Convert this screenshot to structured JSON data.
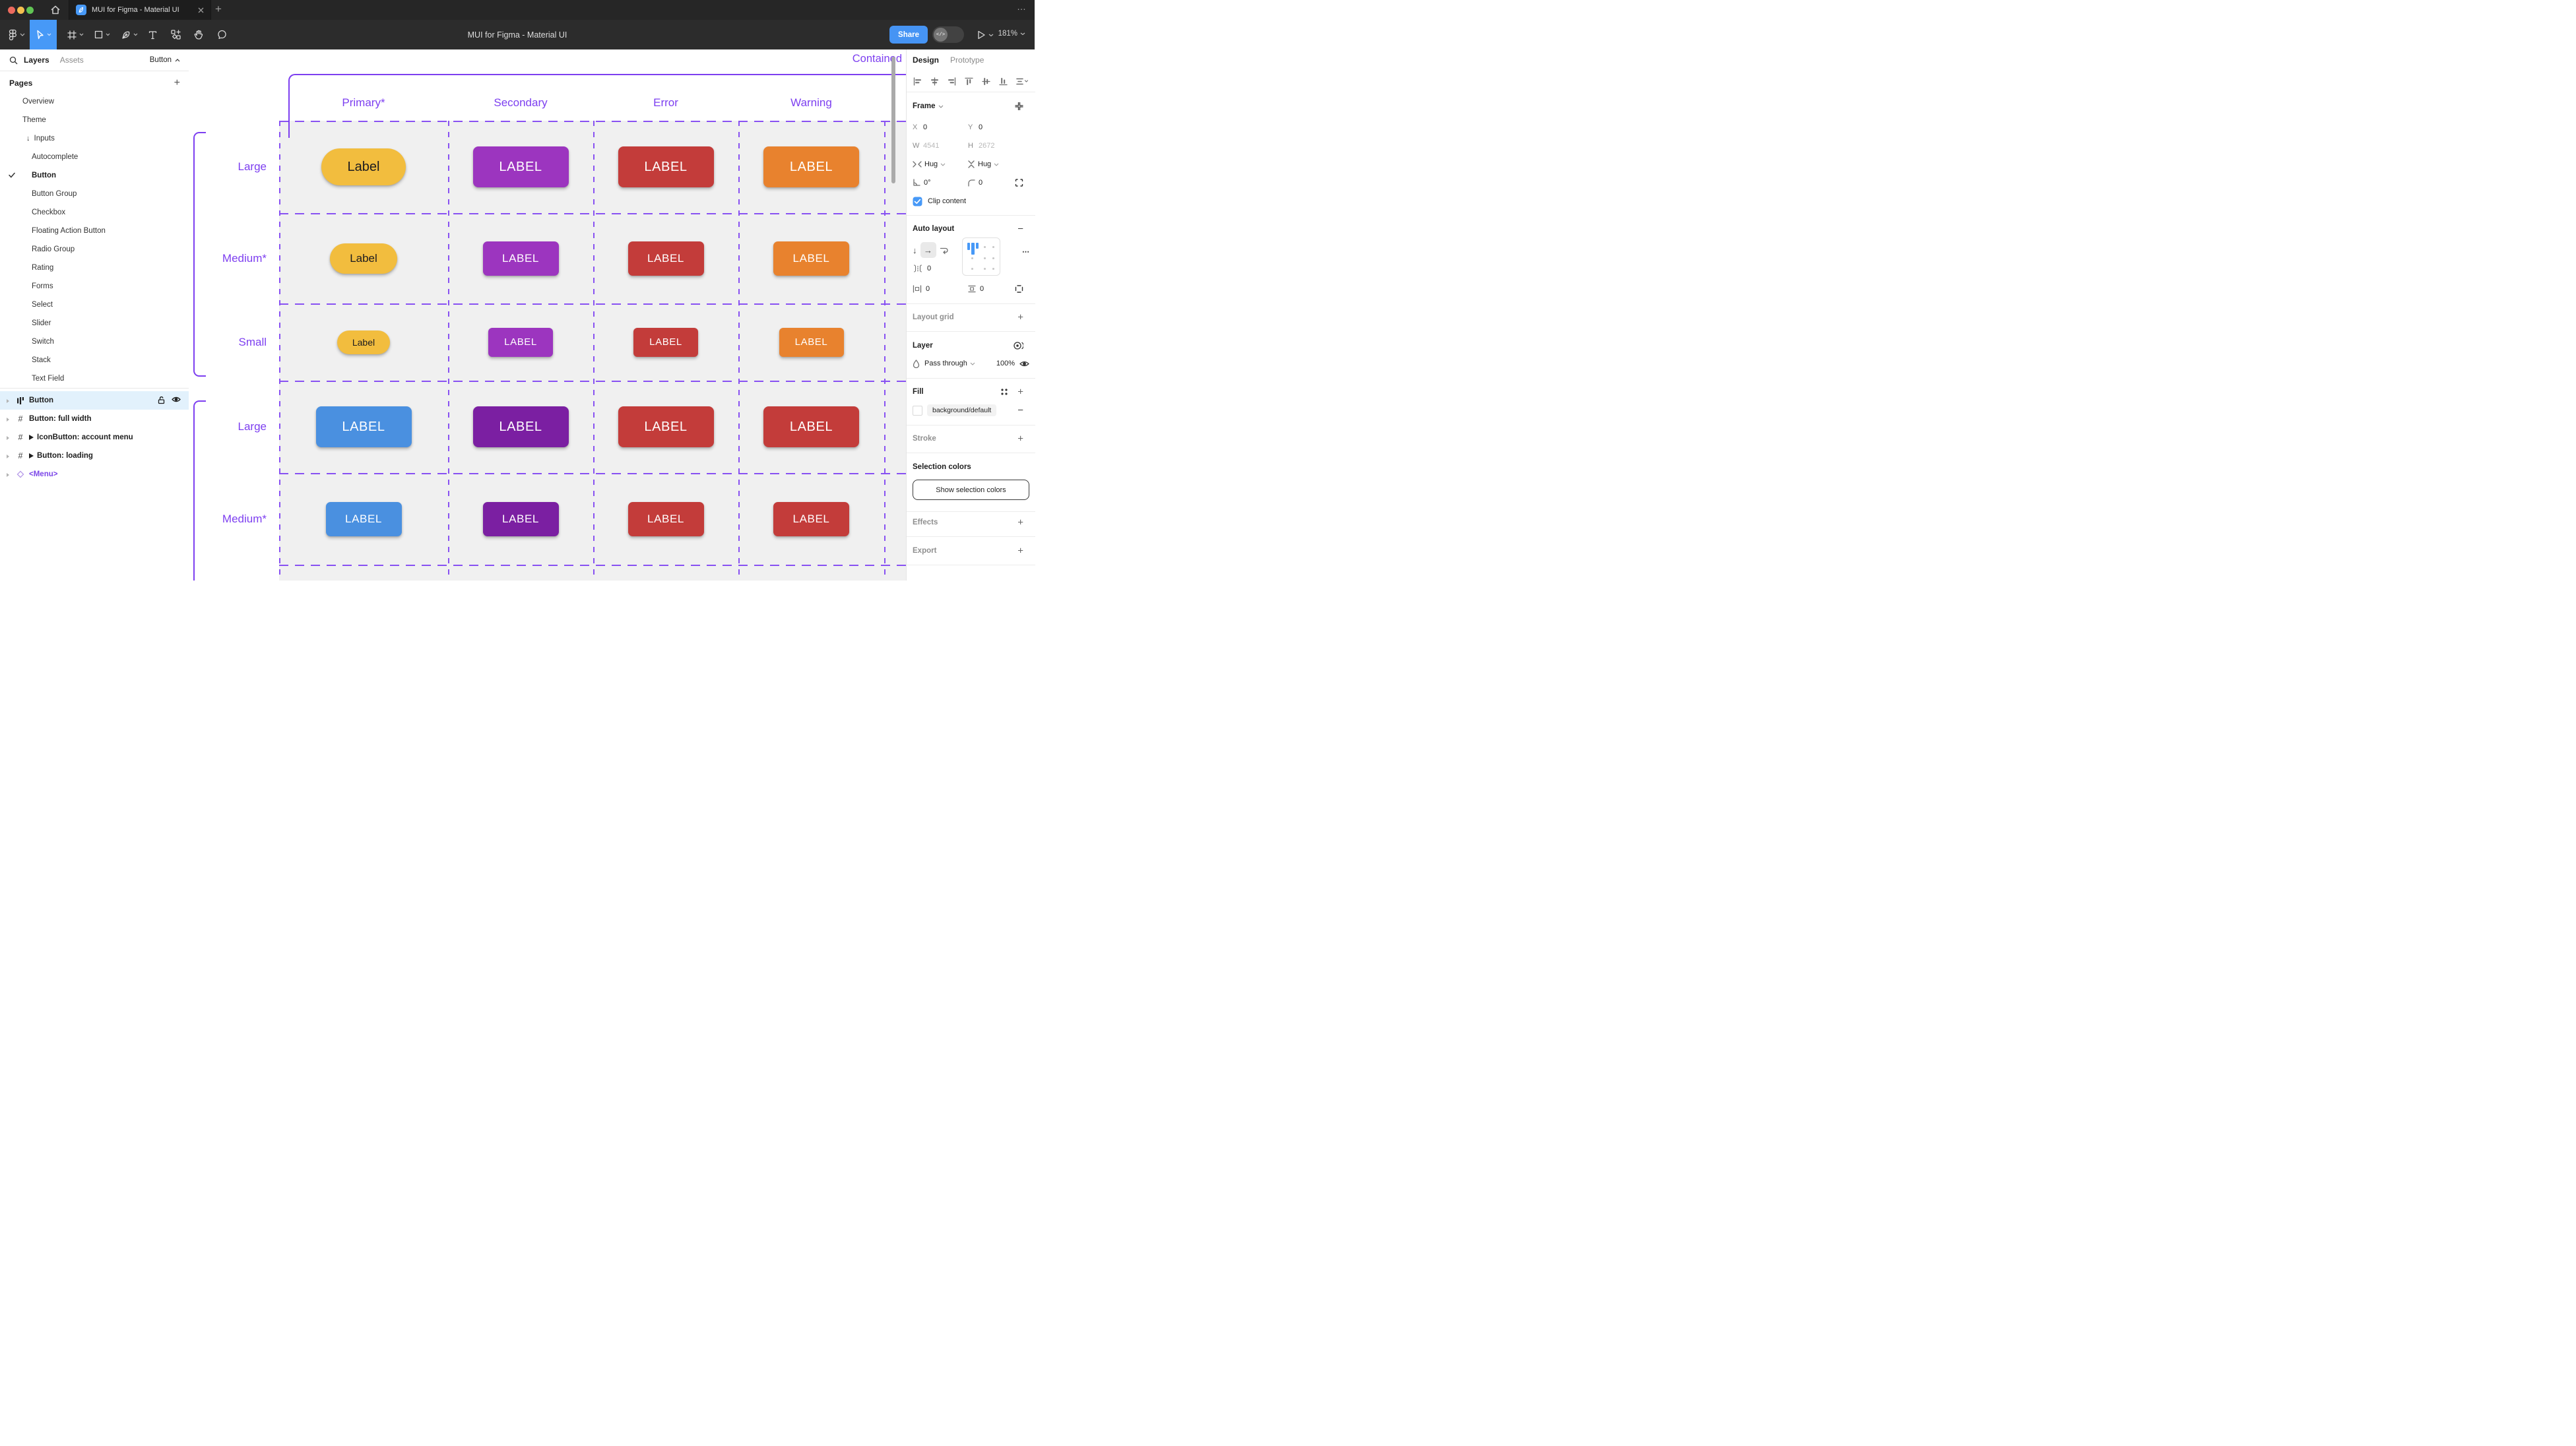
{
  "window": {
    "tab_title": "MUI for Figma - Material UI",
    "more_label": "…"
  },
  "toolbar": {
    "doc_title": "MUI for Figma - Material UI",
    "share_label": "Share",
    "dev_toggle_glyph": "</>",
    "zoom_level": "181%"
  },
  "sidebar": {
    "tabs": {
      "layers": "Layers",
      "assets": "Assets"
    },
    "page_selector": "Button",
    "pages_header": "Pages",
    "pages": [
      {
        "label": "Overview",
        "indent": 0
      },
      {
        "label": "Theme",
        "indent": 0
      },
      {
        "label": "Inputs",
        "indent": 0,
        "arrow": "↓"
      },
      {
        "label": "Autocomplete",
        "indent": 1
      },
      {
        "label": "Button",
        "indent": 1,
        "checked": true,
        "active": true
      },
      {
        "label": "Button Group",
        "indent": 1
      },
      {
        "label": "Checkbox",
        "indent": 1
      },
      {
        "label": "Floating Action Button",
        "indent": 1
      },
      {
        "label": "Radio Group",
        "indent": 1
      },
      {
        "label": "Rating",
        "indent": 1
      },
      {
        "label": "Forms",
        "indent": 1
      },
      {
        "label": "Select",
        "indent": 1
      },
      {
        "label": "Slider",
        "indent": 1
      },
      {
        "label": "Switch",
        "indent": 1
      },
      {
        "label": "Stack",
        "indent": 1
      },
      {
        "label": "Text Field",
        "indent": 1
      }
    ],
    "layers": [
      {
        "label": "Button",
        "icon": "autolayout",
        "selected": true
      },
      {
        "label": "Button: full width",
        "icon": "frame"
      },
      {
        "label": "IconButton: account menu",
        "icon": "frame",
        "play": true
      },
      {
        "label": "Button: loading",
        "icon": "frame",
        "play": true
      },
      {
        "label": "<Menu>",
        "icon": "component",
        "purple": true
      }
    ]
  },
  "canvas": {
    "frame_label": "Contained",
    "annotation_color": "#7D3FF0",
    "columns": [
      "Primary*",
      "Secondary",
      "Error",
      "Warning"
    ],
    "sections": [
      {
        "rows": [
          {
            "label": "Large",
            "size": "large",
            "buttons": [
              {
                "text": "Label",
                "bg": "#F2BD3E",
                "fg": "#1C1B1F",
                "pill": true
              },
              {
                "text": "LABEL",
                "bg": "#9C35BF",
                "fg": "#FFFFFF"
              },
              {
                "text": "LABEL",
                "bg": "#C33C3A",
                "fg": "#FFFFFF"
              },
              {
                "text": "LABEL",
                "bg": "#E8822E",
                "fg": "#FFFFFF"
              }
            ]
          },
          {
            "label": "Medium*",
            "size": "medium",
            "buttons": [
              {
                "text": "Label",
                "bg": "#F2BD3E",
                "fg": "#1C1B1F",
                "pill": true
              },
              {
                "text": "LABEL",
                "bg": "#9C35BF",
                "fg": "#FFFFFF"
              },
              {
                "text": "LABEL",
                "bg": "#C33C3A",
                "fg": "#FFFFFF"
              },
              {
                "text": "LABEL",
                "bg": "#E8822E",
                "fg": "#FFFFFF"
              }
            ]
          },
          {
            "label": "Small",
            "size": "small",
            "buttons": [
              {
                "text": "Label",
                "bg": "#F2BD3E",
                "fg": "#1C1B1F",
                "pill": true
              },
              {
                "text": "LABEL",
                "bg": "#9C35BF",
                "fg": "#FFFFFF"
              },
              {
                "text": "LABEL",
                "bg": "#C33C3A",
                "fg": "#FFFFFF"
              },
              {
                "text": "LABEL",
                "bg": "#E8822E",
                "fg": "#FFFFFF"
              }
            ]
          }
        ]
      },
      {
        "rows": [
          {
            "label": "Large",
            "size": "large",
            "buttons": [
              {
                "text": "LABEL",
                "bg": "#4A90E0",
                "fg": "#FFFFFF"
              },
              {
                "text": "LABEL",
                "bg": "#7B1FA2",
                "fg": "#FFFFFF"
              },
              {
                "text": "LABEL",
                "bg": "#C33C3A",
                "fg": "#FFFFFF"
              },
              {
                "text": "LABEL",
                "bg": "#C33C3A",
                "fg": "#FFFFFF"
              }
            ]
          },
          {
            "label": "Medium*",
            "size": "medium",
            "buttons": [
              {
                "text": "LABEL",
                "bg": "#4A90E0",
                "fg": "#FFFFFF"
              },
              {
                "text": "LABEL",
                "bg": "#7B1FA2",
                "fg": "#FFFFFF"
              },
              {
                "text": "LABEL",
                "bg": "#C33C3A",
                "fg": "#FFFFFF"
              },
              {
                "text": "LABEL",
                "bg": "#C33C3A",
                "fg": "#FFFFFF"
              }
            ]
          }
        ]
      }
    ]
  },
  "inspector": {
    "tabs": {
      "design": "Design",
      "prototype": "Prototype"
    },
    "frame": {
      "title": "Frame",
      "x_label": "X",
      "x": "0",
      "y_label": "Y",
      "y": "0",
      "w_label": "W",
      "w": "4541",
      "h_label": "H",
      "h": "2672",
      "hug_h": "Hug",
      "hug_v": "Hug",
      "rotation": "0°",
      "radius": "0",
      "clip_label": "Clip content"
    },
    "auto_layout": {
      "title": "Auto layout",
      "gap": "0",
      "pad_h": "0",
      "pad_v": "0",
      "more": "⋯"
    },
    "layout_grid": {
      "title": "Layout grid"
    },
    "layer": {
      "title": "Layer",
      "blend": "Pass through",
      "opacity": "100%"
    },
    "fill": {
      "title": "Fill",
      "token": "background/default"
    },
    "stroke": {
      "title": "Stroke"
    },
    "selection_colors": {
      "title": "Selection colors",
      "button": "Show selection colors"
    },
    "effects": {
      "title": "Effects"
    },
    "export": {
      "title": "Export"
    },
    "accent_blue": "#4799F7"
  }
}
